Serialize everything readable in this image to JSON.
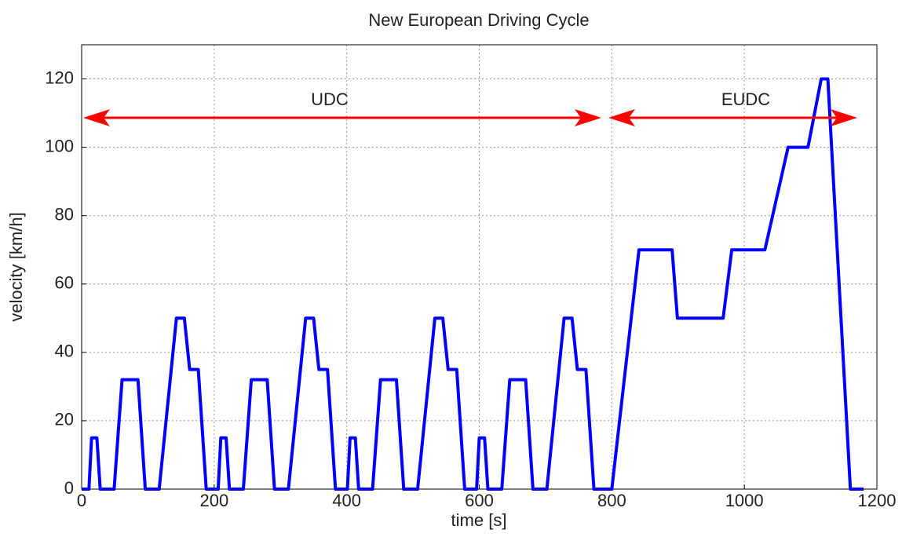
{
  "chart_data": {
    "type": "line",
    "title": "New European Driving Cycle",
    "xlabel": "time [s]",
    "ylabel": "velocity [km/h]",
    "annotations": [
      {
        "text": "UDC"
      },
      {
        "text": "EUDC"
      }
    ],
    "x": [
      0,
      11,
      15,
      23,
      28,
      49,
      61,
      85,
      96,
      117,
      143,
      155,
      163,
      176,
      188,
      195,
      206,
      210,
      218,
      223,
      244,
      256,
      280,
      291,
      312,
      338,
      350,
      358,
      371,
      383,
      390,
      401,
      405,
      413,
      418,
      439,
      451,
      475,
      486,
      507,
      533,
      545,
      553,
      566,
      578,
      585,
      596,
      600,
      608,
      613,
      634,
      646,
      670,
      681,
      702,
      728,
      740,
      748,
      761,
      773,
      800,
      841,
      891,
      899,
      968,
      981,
      1031,
      1066,
      1096,
      1116,
      1126,
      1160,
      1180
    ],
    "series": [
      {
        "name": "velocity",
        "color": "#0000ff",
        "values": [
          0,
          0,
          15,
          15,
          0,
          0,
          32,
          32,
          0,
          0,
          50,
          50,
          35,
          35,
          0,
          0,
          0,
          15,
          15,
          0,
          0,
          32,
          32,
          0,
          0,
          50,
          50,
          35,
          35,
          0,
          0,
          0,
          15,
          15,
          0,
          0,
          32,
          32,
          0,
          0,
          50,
          50,
          35,
          35,
          0,
          0,
          0,
          15,
          15,
          0,
          0,
          32,
          32,
          0,
          0,
          50,
          50,
          35,
          35,
          0,
          0,
          70,
          70,
          50,
          50,
          70,
          70,
          100,
          100,
          120,
          120,
          0,
          0
        ]
      }
    ],
    "xlim": [
      0,
      1200
    ],
    "xticks": [
      0,
      200,
      400,
      600,
      800,
      1000,
      1200
    ],
    "ylim": [
      0,
      130
    ],
    "yticks": [
      0,
      20,
      40,
      60,
      80,
      100,
      120
    ],
    "grid": true
  }
}
